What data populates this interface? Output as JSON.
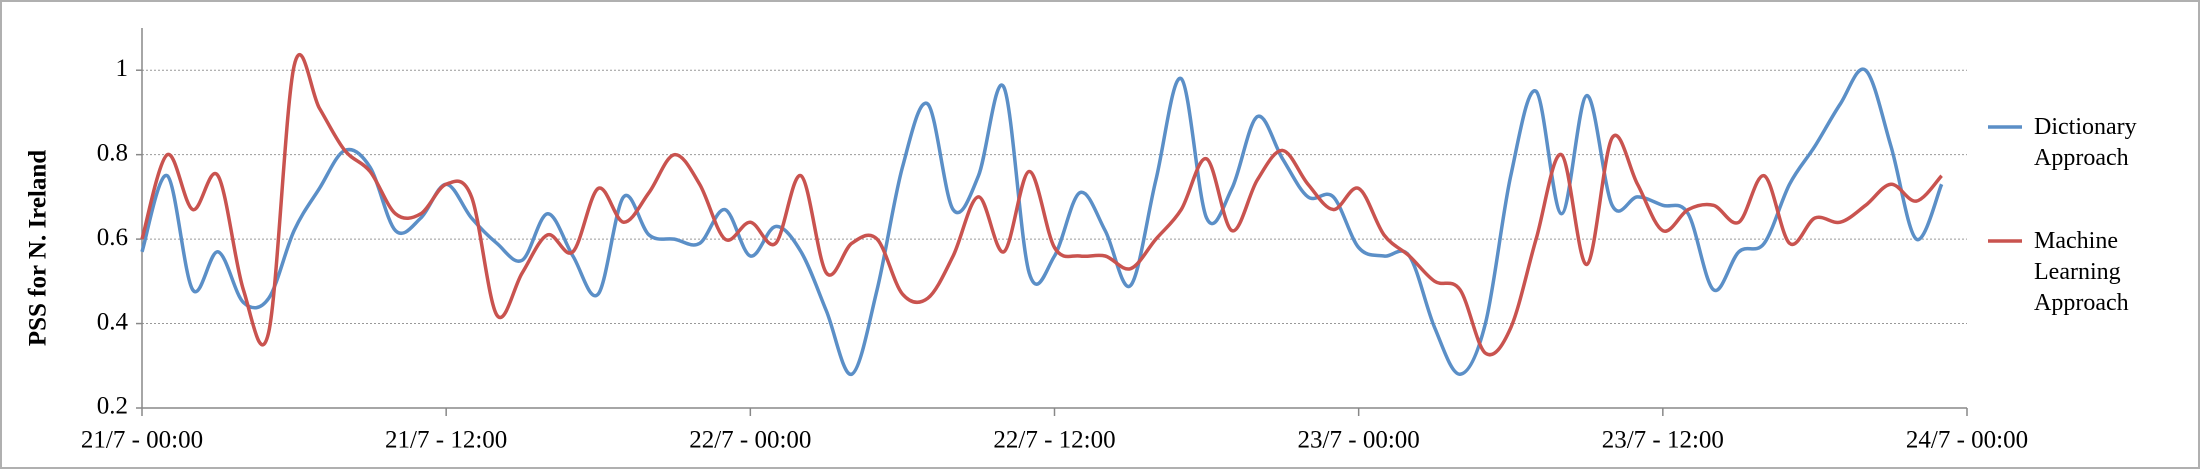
{
  "chart_data": {
    "type": "line",
    "y_label": "PSS for N. Ireland",
    "categories": [
      "21/7 - 00:00",
      null,
      null,
      null,
      null,
      null,
      null,
      null,
      null,
      null,
      null,
      null,
      "21/7 - 12:00",
      null,
      null,
      null,
      null,
      null,
      null,
      null,
      null,
      null,
      null,
      null,
      "22/7 - 00:00",
      null,
      null,
      null,
      null,
      null,
      null,
      null,
      null,
      null,
      null,
      null,
      "22/7 - 12:00",
      null,
      null,
      null,
      null,
      null,
      null,
      null,
      null,
      null,
      null,
      null,
      "23/7 - 00:00",
      null,
      null,
      null,
      null,
      null,
      null,
      null,
      null,
      null,
      null,
      null,
      "23/7 - 12:00",
      null,
      null,
      null,
      null,
      null,
      null,
      null,
      null,
      null,
      null,
      null,
      "24/7 - 00:00"
    ],
    "series": [
      {
        "name": "Dictionary Approach",
        "color": "#5b8fc7",
        "values": [
          0.57,
          0.75,
          0.48,
          0.57,
          0.45,
          0.46,
          0.62,
          0.72,
          0.81,
          0.77,
          0.62,
          0.65,
          0.73,
          0.65,
          0.59,
          0.55,
          0.66,
          0.56,
          0.47,
          0.7,
          0.61,
          0.6,
          0.59,
          0.67,
          0.56,
          0.63,
          0.57,
          0.43,
          0.28,
          0.48,
          0.77,
          0.92,
          0.67,
          0.75,
          0.96,
          0.52,
          0.56,
          0.71,
          0.62,
          0.49,
          0.74,
          0.98,
          0.65,
          0.72,
          0.89,
          0.79,
          0.7,
          0.7,
          0.58,
          0.56,
          0.56,
          0.39,
          0.28,
          0.4,
          0.75,
          0.95,
          0.66,
          0.94,
          0.68,
          0.7,
          0.68,
          0.66,
          0.48,
          0.57,
          0.59,
          0.73,
          0.82,
          0.92,
          1.0,
          0.82,
          0.6,
          0.73,
          null
        ]
      },
      {
        "name": "Machine Learning Approach",
        "color": "#c9534f",
        "values": [
          0.6,
          0.8,
          0.67,
          0.75,
          0.48,
          0.38,
          1.01,
          0.91,
          0.81,
          0.76,
          0.66,
          0.66,
          0.73,
          0.7,
          0.42,
          0.52,
          0.61,
          0.57,
          0.72,
          0.64,
          0.71,
          0.8,
          0.73,
          0.6,
          0.64,
          0.59,
          0.75,
          0.52,
          0.59,
          0.6,
          0.47,
          0.46,
          0.56,
          0.7,
          0.57,
          0.76,
          0.58,
          0.56,
          0.56,
          0.53,
          0.6,
          0.67,
          0.79,
          0.62,
          0.74,
          0.81,
          0.73,
          0.67,
          0.72,
          0.61,
          0.56,
          0.5,
          0.48,
          0.33,
          0.39,
          0.6,
          0.8,
          0.54,
          0.84,
          0.73,
          0.62,
          0.67,
          0.68,
          0.64,
          0.75,
          0.59,
          0.65,
          0.64,
          0.68,
          0.73,
          0.69,
          0.75,
          null
        ]
      }
    ],
    "ylim": [
      0.2,
      1.1
    ],
    "yticks": [
      0.2,
      0.4,
      0.6,
      0.8,
      1
    ],
    "grid": true
  }
}
